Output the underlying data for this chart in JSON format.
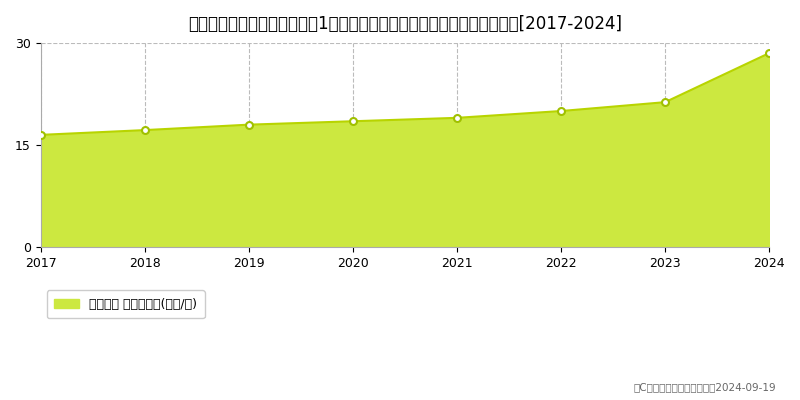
{
  "title": "宮城県仙台市青葉区双葉ケ丘1丁目１１８番１０４　基準地価　地価推移[2017-2024]",
  "years": [
    2017,
    2018,
    2019,
    2020,
    2021,
    2022,
    2023,
    2024
  ],
  "values": [
    16.5,
    17.2,
    18.0,
    18.5,
    19.0,
    20.0,
    21.3,
    28.5
  ],
  "ylim": [
    0,
    30
  ],
  "yticks": [
    0,
    15,
    30
  ],
  "line_color": "#b8d400",
  "fill_color": "#cce840",
  "marker_color": "#ffffff",
  "marker_edge_color": "#a0c000",
  "grid_color": "#bbbbbb",
  "background_color": "#ffffff",
  "legend_label": "基準地価 平均嵪単価(万円/嵪)",
  "copyright_text": "（C）土地価格ドットコム　2024-09-19",
  "title_fontsize": 12,
  "axis_fontsize": 9,
  "legend_fontsize": 9
}
